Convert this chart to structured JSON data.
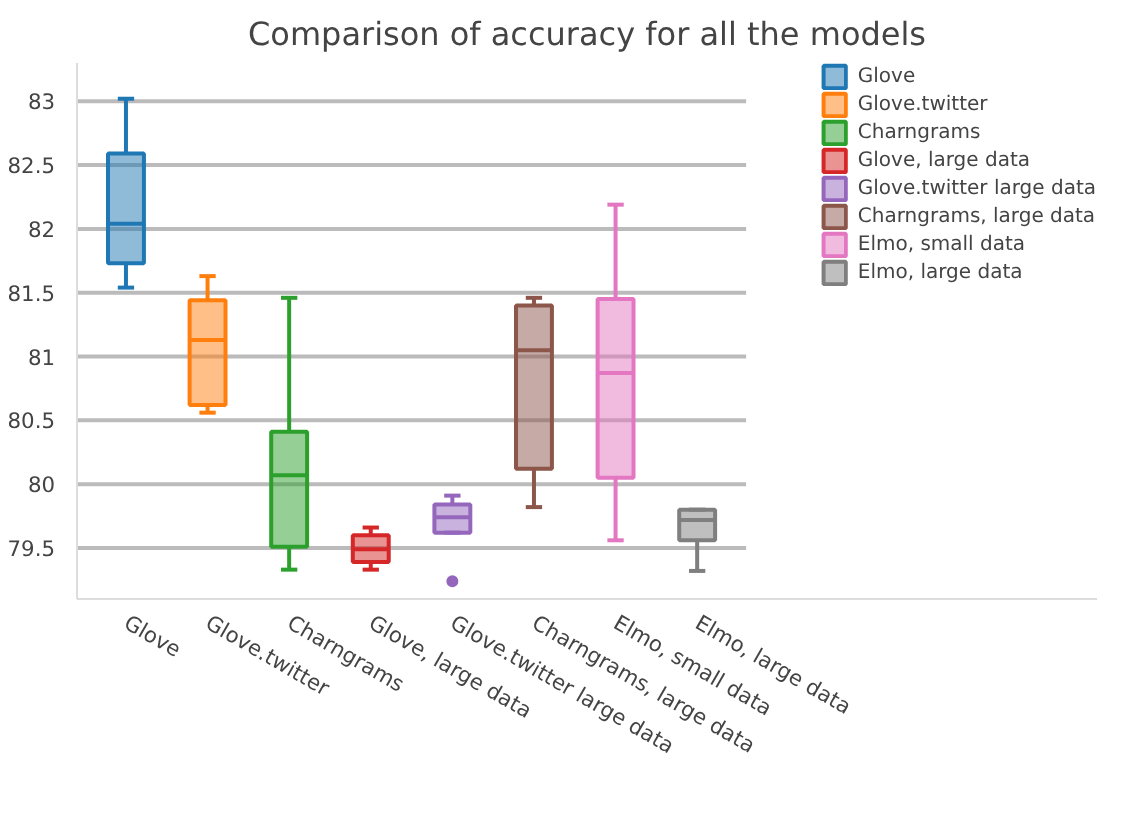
{
  "chart_data": {
    "type": "box",
    "title": "Comparison of accuracy for all the models",
    "categories": [
      "Glove",
      "Glove.twitter",
      "Charngrams",
      "Glove, large data",
      "Glove.twitter large data",
      "Charngrams, large data",
      "Elmo, small data",
      "Elmo, large data"
    ],
    "series": [
      {
        "name": "Glove",
        "color": "#1f77b4",
        "boxes": [
          {
            "low": 81.54,
            "q1": 81.73,
            "median": 82.04,
            "q3": 82.59,
            "high": 83.02
          },
          null,
          null,
          null,
          null,
          null,
          null,
          null
        ]
      },
      {
        "name": "Glove.twitter",
        "color": "#ff7f0e",
        "boxes": [
          null,
          {
            "low": 80.56,
            "q1": 80.62,
            "median": 81.13,
            "q3": 81.44,
            "high": 81.63
          },
          null,
          null,
          null,
          null,
          null,
          null
        ]
      },
      {
        "name": "Charngrams",
        "color": "#2ca02c",
        "boxes": [
          null,
          null,
          {
            "low": 79.33,
            "q1": 79.51,
            "median": 80.07,
            "q3": 80.41,
            "high": 81.46
          },
          null,
          null,
          null,
          null,
          null
        ]
      },
      {
        "name": "Glove, large data",
        "color": "#d62728",
        "boxes": [
          null,
          null,
          null,
          {
            "low": 79.33,
            "q1": 79.39,
            "median": 79.49,
            "q3": 79.6,
            "high": 79.66
          },
          null,
          null,
          null,
          null
        ]
      },
      {
        "name": "Glove.twitter large data",
        "color": "#9467bd",
        "boxes": [
          null,
          null,
          null,
          null,
          {
            "low": 79.62,
            "q1": 79.62,
            "median": 79.74,
            "q3": 79.84,
            "high": 79.91,
            "outliers": [
              79.24
            ]
          },
          null,
          null,
          null
        ]
      },
      {
        "name": "Charngrams, large data",
        "color": "#8c564b",
        "boxes": [
          null,
          null,
          null,
          null,
          null,
          {
            "low": 79.82,
            "q1": 80.12,
            "median": 81.05,
            "q3": 81.4,
            "high": 81.46
          },
          null,
          null
        ]
      },
      {
        "name": "Elmo, small data",
        "color": "#e377c2",
        "boxes": [
          null,
          null,
          null,
          null,
          null,
          null,
          {
            "low": 79.56,
            "q1": 80.05,
            "median": 80.87,
            "q3": 81.45,
            "high": 82.19
          },
          null
        ]
      },
      {
        "name": "Elmo, large data",
        "color": "#7f7f7f",
        "boxes": [
          null,
          null,
          null,
          null,
          null,
          null,
          null,
          {
            "low": 79.32,
            "q1": 79.56,
            "median": 79.72,
            "q3": 79.8,
            "high": 79.8
          }
        ]
      }
    ],
    "ylim": [
      79.1,
      83.3
    ],
    "yticks": [
      79.5,
      80,
      80.5,
      81,
      81.5,
      82,
      82.5,
      83
    ],
    "grid": "y",
    "legend": "top right"
  }
}
